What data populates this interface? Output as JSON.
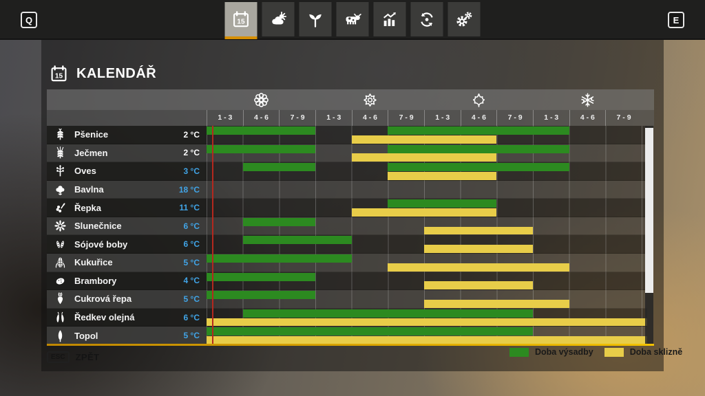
{
  "colors": {
    "accent_orange": "#d78f00",
    "planting_green": "#2c8a20",
    "harvest_yellow": "#e8cd49",
    "temp_blue": "#41a4e6",
    "current_day_red": "#b5281e"
  },
  "top_bar": {
    "left_key": "Q",
    "right_key": "E",
    "tabs": [
      {
        "icon": "calendar-icon",
        "day": "15",
        "active": true
      },
      {
        "icon": "weather-icon",
        "active": false
      },
      {
        "icon": "crops-icon",
        "active": false
      },
      {
        "icon": "animals-icon",
        "active": false
      },
      {
        "icon": "statistics-icon",
        "active": false
      },
      {
        "icon": "finances-icon",
        "active": false
      },
      {
        "icon": "settings-icon",
        "active": false
      }
    ]
  },
  "header": {
    "title": "KALENDÁŘ",
    "icon": "calendar-icon",
    "icon_day": "15"
  },
  "calendar": {
    "season_icons": [
      "spring-flower-icon",
      "summer-sun-icon",
      "autumn-leaf-icon",
      "winter-snowflake-icon"
    ],
    "period_labels": [
      "1 - 3",
      "4 - 6",
      "7 - 9",
      "1 - 3",
      "4 - 6",
      "7 - 9",
      "1 - 3",
      "4 - 6",
      "7 - 9",
      "1 - 3",
      "4 - 6",
      "7 - 9"
    ],
    "rows": [
      {
        "crop": "Pšenice",
        "icon": "wheat-icon",
        "temp": "2 °C",
        "temp_style": "white",
        "plant": [
          {
            "start": 0,
            "span": 3
          },
          {
            "start": 5,
            "span": 5
          }
        ],
        "harvest": [
          {
            "start": 4,
            "span": 4
          }
        ]
      },
      {
        "crop": "Ječmen",
        "icon": "barley-icon",
        "temp": "2 °C",
        "temp_style": "white",
        "plant": [
          {
            "start": 0,
            "span": 3
          },
          {
            "start": 5,
            "span": 5
          }
        ],
        "harvest": [
          {
            "start": 4,
            "span": 4
          }
        ]
      },
      {
        "crop": "Oves",
        "icon": "oat-icon",
        "temp": "3 °C",
        "temp_style": "blue",
        "plant": [
          {
            "start": 1,
            "span": 2
          },
          {
            "start": 5,
            "span": 5
          }
        ],
        "harvest": [
          {
            "start": 5,
            "span": 3
          }
        ]
      },
      {
        "crop": "Bavlna",
        "icon": "cotton-icon",
        "temp": "18 °C",
        "temp_style": "blue",
        "plant": [],
        "harvest": []
      },
      {
        "crop": "Řepka",
        "icon": "canola-icon",
        "temp": "11 °C",
        "temp_style": "blue",
        "plant": [
          {
            "start": 5,
            "span": 3
          }
        ],
        "harvest": [
          {
            "start": 4,
            "span": 4
          }
        ]
      },
      {
        "crop": "Slunečnice",
        "icon": "sunflower-icon",
        "temp": "6 °C",
        "temp_style": "blue",
        "plant": [
          {
            "start": 1,
            "span": 2
          }
        ],
        "harvest": [
          {
            "start": 6,
            "span": 3
          }
        ]
      },
      {
        "crop": "Sójové boby",
        "icon": "soybean-icon",
        "temp": "6 °C",
        "temp_style": "blue",
        "plant": [
          {
            "start": 1,
            "span": 3
          }
        ],
        "harvest": [
          {
            "start": 6,
            "span": 3
          }
        ]
      },
      {
        "crop": "Kukuřice",
        "icon": "corn-icon",
        "temp": "5 °C",
        "temp_style": "blue",
        "plant": [
          {
            "start": 0,
            "span": 4
          }
        ],
        "harvest": [
          {
            "start": 5,
            "span": 5
          }
        ]
      },
      {
        "crop": "Brambory",
        "icon": "potato-icon",
        "temp": "4 °C",
        "temp_style": "blue",
        "plant": [
          {
            "start": 0,
            "span": 3
          }
        ],
        "harvest": [
          {
            "start": 6,
            "span": 3
          }
        ]
      },
      {
        "crop": "Cukrová řepa",
        "icon": "sugar-beet-icon",
        "temp": "5 °C",
        "temp_style": "blue",
        "plant": [
          {
            "start": 0,
            "span": 3
          }
        ],
        "harvest": [
          {
            "start": 6,
            "span": 4
          }
        ]
      },
      {
        "crop": "Ředkev olejná",
        "icon": "radish-icon",
        "temp": "6 °C",
        "temp_style": "blue",
        "plant": [
          {
            "start": 1,
            "span": 8
          }
        ],
        "harvest": [
          {
            "start": 0,
            "span": 12.15
          }
        ]
      },
      {
        "crop": "Topol",
        "icon": "poplar-icon",
        "temp": "5 °C",
        "temp_style": "blue",
        "plant": [
          {
            "start": 0,
            "span": 9
          }
        ],
        "harvest": [
          {
            "start": 0,
            "span": 12.15
          }
        ]
      }
    ]
  },
  "legend": [
    {
      "label": "Doba výsadby",
      "type": "plant"
    },
    {
      "label": "Doba sklizně",
      "type": "harvest"
    }
  ],
  "footer": {
    "key": "ESC",
    "label": "ZPĚT"
  }
}
